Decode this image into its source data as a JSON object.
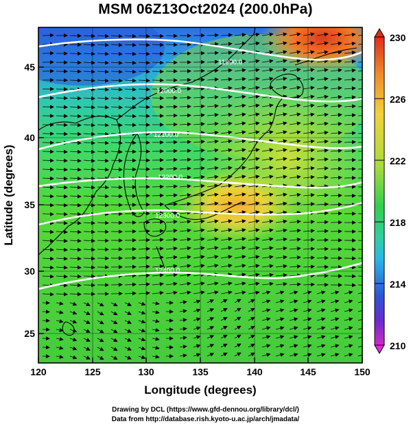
{
  "title": "MSM 06Z13Oct2024 (200.0hPa)",
  "x_axis": {
    "label": "Longitude (degrees)",
    "ticks": [
      "120",
      "125",
      "130",
      "135",
      "140",
      "145",
      "150"
    ],
    "range": [
      120,
      150
    ]
  },
  "y_axis": {
    "label": "Latitude  (degrees)",
    "ticks": [
      "25",
      "30",
      "35",
      "40",
      "45"
    ],
    "range": [
      22.4,
      47.6
    ]
  },
  "colorbar": {
    "ticks": [
      "230",
      "226",
      "222",
      "218",
      "214",
      "210"
    ],
    "range": [
      210,
      230
    ]
  },
  "contours": {
    "labels": [
      "11900.0",
      "12000.0",
      "12100.0",
      "12200.0",
      "12300.0",
      "12400.0"
    ],
    "color": "#ffffff"
  },
  "credits": {
    "line1": "Drawing by DCL (https://www.gfd-dennou.org/library/dcl/)",
    "line2": "Data from http://database.rish.kyoto-u.ac.jp/arch/jmadata/"
  }
}
